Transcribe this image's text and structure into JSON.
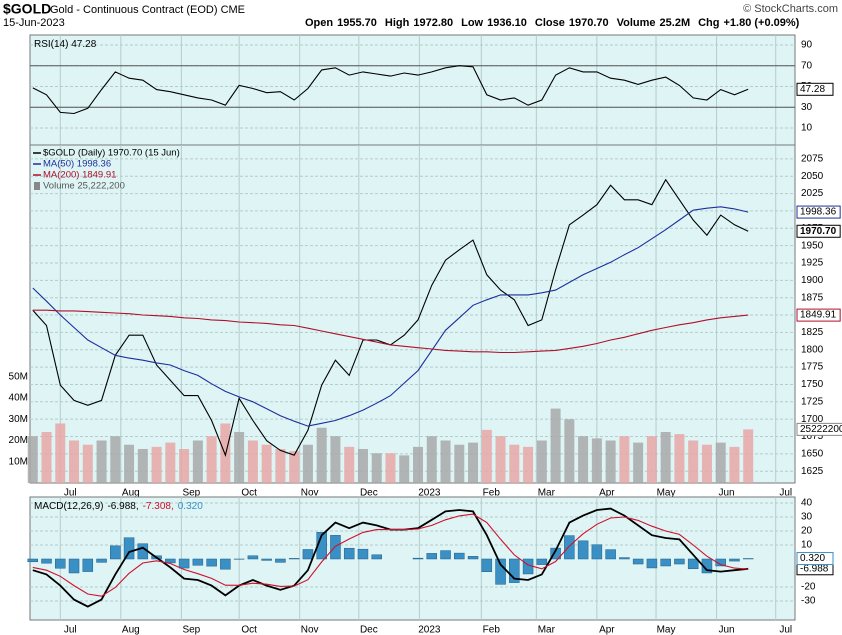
{
  "header": {
    "symbol": "$GOLD",
    "description": "Gold - Continuous Contract (EOD) CME",
    "date": "15-Jun-2023",
    "stats": [
      {
        "label": "Open",
        "value": "1955.70"
      },
      {
        "label": "High",
        "value": "1972.80"
      },
      {
        "label": "Low",
        "value": "1936.10"
      },
      {
        "label": "Close",
        "value": "1970.70"
      },
      {
        "label": "Volume",
        "value": "25.2M"
      },
      {
        "label": "Chg",
        "value": "+1.80 (+0.09%)"
      }
    ],
    "copyright": "© StockCharts.com"
  },
  "chart_data": [
    {
      "type": "line",
      "title": "RSI(14) 47.28",
      "background": "#dff5f5",
      "grid": true,
      "x": [
        0,
        1,
        2,
        3,
        4,
        5,
        6,
        7,
        8,
        9,
        10,
        11,
        12,
        13,
        14,
        15,
        16,
        17,
        18,
        19,
        20,
        21,
        22,
        23,
        24,
        25,
        26,
        27,
        28,
        29,
        30,
        31,
        32,
        33,
        34,
        35,
        36,
        37,
        38,
        39,
        40,
        41,
        42,
        43,
        44,
        45,
        46,
        47,
        48,
        49,
        50,
        51,
        52
      ],
      "xlim": [
        -0.2,
        55.4
      ],
      "ylim": [
        -6.4,
        99.6
      ],
      "yticks": [
        10,
        30,
        50,
        70,
        90
      ],
      "reference_lines": [
        30,
        70
      ],
      "series": [
        {
          "name": "RSI(14)",
          "color": "#000000",
          "last_label": "47.28",
          "values": [
            48.6,
            42,
            25,
            24,
            29,
            47,
            64,
            58,
            56,
            47,
            45,
            42,
            39,
            37,
            32,
            51,
            48,
            44,
            45,
            37,
            48,
            66,
            68,
            61,
            64,
            62,
            60,
            63,
            61,
            64,
            68,
            70,
            69,
            42,
            37,
            39,
            32,
            37,
            61,
            68,
            64,
            64,
            58,
            56,
            52,
            56,
            59,
            51,
            39,
            37,
            47,
            42,
            47.28
          ]
        }
      ]
    },
    {
      "type": "line",
      "background": "#dff5f5",
      "grid": true,
      "legend": "top-left",
      "x": [
        0,
        1,
        2,
        3,
        4,
        5,
        6,
        7,
        8,
        9,
        10,
        11,
        12,
        13,
        14,
        15,
        16,
        17,
        18,
        19,
        20,
        21,
        22,
        23,
        24,
        25,
        26,
        27,
        28,
        29,
        30,
        31,
        32,
        33,
        34,
        35,
        36,
        37,
        38,
        39,
        40,
        41,
        42,
        43,
        44,
        45,
        46,
        47,
        48,
        49,
        50,
        51,
        52
      ],
      "xlim": [
        -0.2,
        55.4
      ],
      "xticks": [
        {
          "value": 2,
          "label": "Jul"
        },
        {
          "value": 6.4,
          "label": "Aug"
        },
        {
          "value": 10.8,
          "label": "Sep"
        },
        {
          "value": 15,
          "label": "Oct"
        },
        {
          "value": 19.4,
          "label": "Nov"
        },
        {
          "value": 23.7,
          "label": "Dec"
        },
        {
          "value": 28.1,
          "label": "2023"
        },
        {
          "value": 32.6,
          "label": "Feb"
        },
        {
          "value": 36.6,
          "label": "Mar"
        },
        {
          "value": 41,
          "label": "Apr"
        },
        {
          "value": 45.3,
          "label": "May"
        },
        {
          "value": 49.7,
          "label": "Jun"
        },
        {
          "value": 54,
          "label": "Jul"
        }
      ],
      "ylim": [
        1608,
        2095
      ],
      "yticks": [
        1625,
        1650,
        1675,
        1700,
        1725,
        1750,
        1775,
        1800,
        1825,
        1850,
        1875,
        1900,
        1925,
        1950,
        1975,
        2000,
        2025,
        2050,
        2075
      ],
      "series": [
        {
          "name": "$GOLD (Daily) 1970.70 (15 Jun)",
          "color": "#000000",
          "last_label": "1970.70",
          "values": [
            1857,
            1835,
            1749,
            1727,
            1720,
            1727,
            1792,
            1821,
            1821,
            1778,
            1756,
            1734,
            1734,
            1698,
            1648,
            1730,
            1698,
            1669,
            1655,
            1648,
            1684,
            1749,
            1785,
            1763,
            1814,
            1814,
            1807,
            1821,
            1843,
            1893,
            1929,
            1944,
            1958,
            1908,
            1886,
            1872,
            1835,
            1843,
            1915,
            1980,
            1994,
            2009,
            2037,
            2016,
            2016,
            2009,
            2045,
            2016,
            1987,
            1965,
            1994,
            1980,
            1970.7
          ]
        },
        {
          "name": "MA(50) 1998.36",
          "color": "#1c2f9c",
          "last_label": "1998.36",
          "values": [
            1889,
            1870,
            1850,
            1832,
            1814,
            1803,
            1792,
            1788,
            1785,
            1781,
            1778,
            1770,
            1763,
            1751,
            1740,
            1732,
            1725,
            1715,
            1705,
            1697,
            1690,
            1694,
            1698,
            1705,
            1713,
            1723,
            1734,
            1752,
            1770,
            1799,
            1828,
            1846,
            1864,
            1872,
            1879,
            1879,
            1879,
            1882,
            1886,
            1897,
            1908,
            1917,
            1926,
            1937,
            1947,
            1960,
            1973,
            1987,
            2001,
            2004,
            2006,
            2003,
            1998.36
          ]
        },
        {
          "name": "MA(200) 1849.91",
          "color": "#b0102a",
          "last_label": "1849.91",
          "values": [
            1857,
            1857,
            1856,
            1856,
            1855,
            1854,
            1853,
            1852,
            1850,
            1849,
            1848,
            1846,
            1845,
            1843,
            1842,
            1840,
            1839,
            1838,
            1836,
            1835,
            1831,
            1827,
            1823,
            1819,
            1815,
            1811,
            1807,
            1805,
            1803,
            1801,
            1799,
            1798,
            1797,
            1797,
            1796,
            1796,
            1797,
            1798,
            1799,
            1802,
            1805,
            1809,
            1814,
            1818,
            1823,
            1828,
            1832,
            1836,
            1839,
            1843,
            1846,
            1848,
            1849.91
          ]
        }
      ],
      "volume": {
        "name": "Volume 25,222,200",
        "up_color": "#a8a8a8",
        "down_color": "#e8a6a6",
        "color": "#888888",
        "last_label": "25222200",
        "ylim": [
          0,
          159000000
        ],
        "yticks": [
          {
            "value": 10000000,
            "label": "10M"
          },
          {
            "value": 20000000,
            "label": "20M"
          },
          {
            "value": 30000000,
            "label": "30M"
          },
          {
            "value": 40000000,
            "label": "40M"
          },
          {
            "value": 50000000,
            "label": "50M"
          }
        ],
        "values": [
          22000000,
          24000000,
          28000000,
          20000000,
          18000000,
          20000000,
          22000000,
          18000000,
          16000000,
          17000000,
          19000000,
          16000000,
          20000000,
          22000000,
          28000000,
          24000000,
          20000000,
          18000000,
          16000000,
          15000000,
          18000000,
          26000000,
          22000000,
          17000000,
          16000000,
          14000000,
          14000000,
          13000000,
          17000000,
          22000000,
          20000000,
          18000000,
          19000000,
          25000000,
          22000000,
          18000000,
          17000000,
          20000000,
          35000000,
          30000000,
          22000000,
          21000000,
          20000000,
          22000000,
          19000000,
          22000000,
          24000000,
          23000000,
          20000000,
          18000000,
          19000000,
          17000000,
          25222200
        ]
      }
    },
    {
      "type": "line",
      "title": "MACD(12,26,9)",
      "background": "#dff5f5",
      "grid": true,
      "x": [
        0,
        1,
        2,
        3,
        4,
        5,
        6,
        7,
        8,
        9,
        10,
        11,
        12,
        13,
        14,
        15,
        16,
        17,
        18,
        19,
        20,
        21,
        22,
        23,
        24,
        25,
        26,
        27,
        28,
        29,
        30,
        31,
        32,
        33,
        34,
        35,
        36,
        37,
        38,
        39,
        40,
        41,
        42,
        43,
        44,
        45,
        46,
        47,
        48,
        49,
        50,
        51,
        52
      ],
      "xlim": [
        -0.2,
        55.4
      ],
      "xticks": [
        {
          "value": 2,
          "label": "Jul"
        },
        {
          "value": 6.4,
          "label": "Aug"
        },
        {
          "value": 10.8,
          "label": "Sep"
        },
        {
          "value": 15,
          "label": "Oct"
        },
        {
          "value": 19.4,
          "label": "Nov"
        },
        {
          "value": 23.7,
          "label": "Dec"
        },
        {
          "value": 28.1,
          "label": "2023"
        },
        {
          "value": 32.6,
          "label": "Feb"
        },
        {
          "value": 36.6,
          "label": "Mar"
        },
        {
          "value": 41,
          "label": "Apr"
        },
        {
          "value": 45.3,
          "label": "May"
        },
        {
          "value": 49.7,
          "label": "Jun"
        },
        {
          "value": 54,
          "label": "Jul"
        }
      ],
      "ylim": [
        -43.6,
        44.3
      ],
      "yticks": [
        -30,
        -20,
        10,
        20,
        30,
        40
      ],
      "series": [
        {
          "name": "-6.988,",
          "type": "bar-under",
          "color": "#000000",
          "last_label": "-6.988",
          "values": [
            -8,
            -11,
            -19,
            -29,
            -34,
            -29,
            -11,
            5,
            8,
            1,
            -6,
            -14,
            -15,
            -19,
            -26,
            -19,
            -15,
            -19,
            -22,
            -19,
            -8,
            17,
            26,
            22,
            26,
            24,
            21,
            21,
            22,
            28,
            34,
            35,
            34,
            17,
            -4,
            -14,
            -15,
            -11,
            6,
            26,
            31,
            35,
            36,
            31,
            24,
            17,
            15,
            14,
            3,
            -8,
            -9,
            -8,
            -6.988
          ]
        },
        {
          "name": "-7.308,",
          "color": "#d0102a",
          "values": [
            -6,
            -8,
            -12.4,
            -19,
            -25,
            -26.6,
            -20.4,
            -10.2,
            -2.9,
            -1.3,
            -3.2,
            -7.5,
            -10.5,
            -13.9,
            -18.7,
            -18.8,
            -17.3,
            -18,
            -19.6,
            -19.4,
            -14.8,
            -2.1,
            9.1,
            14.3,
            19,
            21,
            21,
            21,
            21.4,
            24,
            28,
            30.8,
            32.1,
            26.1,
            14.1,
            2.9,
            -4.3,
            -7,
            -1.8,
            9.3,
            18,
            24.8,
            29.3,
            30,
            27.6,
            23.4,
            20,
            17.6,
            10,
            2,
            -4,
            -6.5,
            -7.308
          ]
        },
        {
          "name": "0.320",
          "type": "bar",
          "color": "#3a8fc4",
          "last_label": "0.320",
          "values": [
            -2,
            -3,
            -6.6,
            -10,
            -9,
            -2.4,
            9.4,
            15.2,
            10.9,
            2.3,
            -2.8,
            -6.5,
            -4.5,
            -5.1,
            -7.3,
            -0.2,
            2.3,
            -1,
            -2.4,
            0.4,
            6.8,
            19.1,
            16.9,
            7.7,
            7,
            3,
            0,
            0,
            0.6,
            4,
            6,
            4.2,
            1.9,
            -9.1,
            -18.1,
            -16.9,
            -10.7,
            -4,
            7.8,
            16.7,
            13,
            10.2,
            6.7,
            1,
            -3.6,
            -6.4,
            -5,
            -3.6,
            -7,
            -10,
            -5,
            -1.5,
            0.32
          ]
        }
      ]
    }
  ]
}
